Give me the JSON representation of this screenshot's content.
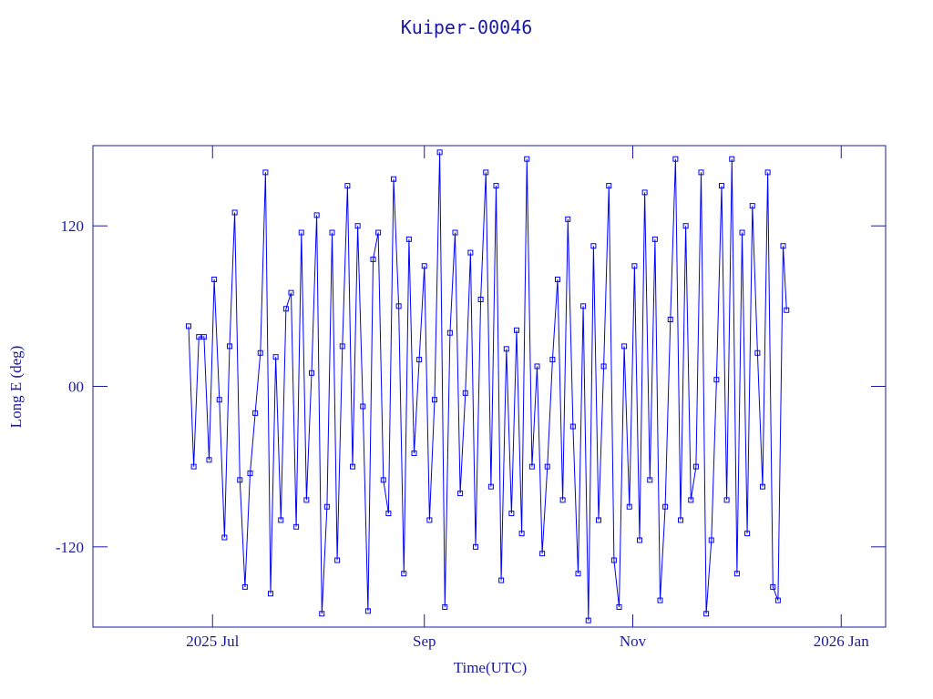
{
  "chart_data": {
    "type": "line",
    "title": "Kuiper-00046",
    "xlabel": "Time(UTC)",
    "ylabel": "Long E (deg)",
    "color": "#0000ff",
    "marker": "square",
    "xlim": [
      146,
      378
    ],
    "xticks": [
      {
        "value": 181,
        "label": "2025 Jul"
      },
      {
        "value": 243,
        "label": "Sep"
      },
      {
        "value": 304,
        "label": "Nov"
      },
      {
        "value": 365,
        "label": "2026 Jan"
      }
    ],
    "ylim": [
      -180,
      180
    ],
    "yticks": [
      {
        "value": -120,
        "label": "-120"
      },
      {
        "value": 0,
        "label": "00"
      },
      {
        "value": 120,
        "label": "120"
      }
    ],
    "x": [
      174,
      175.5,
      177,
      178.5,
      180,
      181.5,
      183,
      184.5,
      186,
      187.5,
      189,
      190.5,
      192,
      193.5,
      195,
      196.5,
      198,
      199.5,
      201,
      202.5,
      204,
      205.5,
      207,
      208.5,
      210,
      211.5,
      213,
      214.5,
      216,
      217.5,
      219,
      220.5,
      222,
      223.5,
      225,
      226.5,
      228,
      229.5,
      231,
      232.5,
      234,
      235.5,
      237,
      238.5,
      240,
      241.5,
      243,
      244.5,
      246,
      247.5,
      249,
      250.5,
      252,
      253.5,
      255,
      256.5,
      258,
      259.5,
      261,
      262.5,
      264,
      265.5,
      267,
      268.5,
      270,
      271.5,
      273,
      274.5,
      276,
      277.5,
      279,
      280.5,
      282,
      283.5,
      285,
      286.5,
      288,
      289.5,
      291,
      292.5,
      294,
      295.5,
      297,
      298.5,
      300,
      301.5,
      303,
      304.5,
      306,
      307.5,
      309,
      310.5,
      312,
      313.5,
      315,
      316.5,
      318,
      319.5,
      321,
      322.5,
      324,
      325.5,
      327,
      328.5,
      330,
      331.5,
      333,
      334.5,
      336,
      337.5,
      339,
      340.5,
      342,
      343.5,
      345,
      346.5,
      348,
      349
    ],
    "values": [
      45,
      -60,
      37,
      37,
      -55,
      80,
      -10,
      -113,
      30,
      130,
      -70,
      -150,
      -65,
      -20,
      25,
      160,
      -155,
      22,
      -100,
      58,
      70,
      -105,
      115,
      -85,
      10,
      128,
      -170,
      -90,
      115,
      -130,
      30,
      150,
      -60,
      120,
      -15,
      -168,
      95,
      115,
      -70,
      -95,
      155,
      60,
      -140,
      110,
      -50,
      20,
      90,
      -100,
      -10,
      175,
      -165,
      40,
      115,
      -80,
      -5,
      100,
      -120,
      65,
      160,
      -75,
      150,
      -145,
      28,
      -95,
      42,
      -110,
      170,
      -60,
      15,
      -125,
      -60,
      20,
      80,
      -85,
      125,
      -30,
      -140,
      60,
      -175,
      105,
      -100,
      15,
      150,
      -130,
      -165,
      30,
      -90,
      90,
      -115,
      145,
      -70,
      110,
      -160,
      -90,
      50,
      170,
      -100,
      120,
      -85,
      -60,
      160,
      -170,
      -115,
      5,
      150,
      -85,
      170,
      -140,
      115,
      -110,
      135,
      25,
      -75,
      160,
      -150,
      -160,
      105,
      57
    ]
  }
}
